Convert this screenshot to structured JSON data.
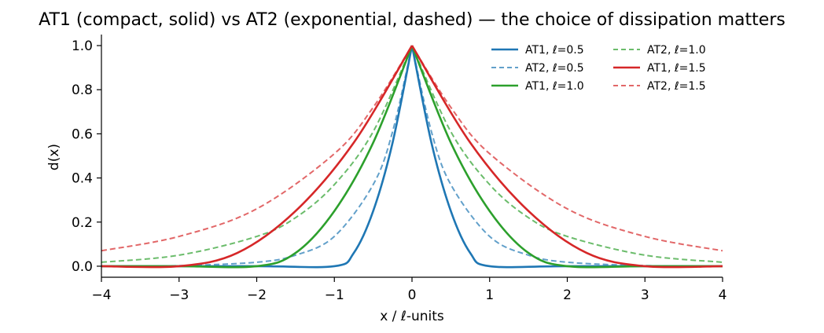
{
  "chart_data": {
    "type": "line",
    "title": "AT1 (compact, solid) vs AT2 (exponential, dashed) — the choice of dissipation matters",
    "xlabel": "x / ℓ-units",
    "ylabel": "d(x)",
    "xlim": [
      -4,
      4
    ],
    "ylim": [
      -0.05,
      1.05
    ],
    "xticks": [
      -4,
      -3,
      -2,
      -1,
      0,
      1,
      2,
      3,
      4
    ],
    "xtick_labels": [
      "−4",
      "−3",
      "−2",
      "−1",
      "0",
      "1",
      "2",
      "3",
      "4"
    ],
    "yticks": [
      0.0,
      0.2,
      0.4,
      0.6,
      0.8,
      1.0
    ],
    "ytick_labels": [
      "0.0",
      "0.2",
      "0.4",
      "0.6",
      "0.8",
      "1.0"
    ],
    "grid": false,
    "legend_position": "top-right",
    "legend_columns": 2,
    "series": [
      {
        "name": "AT1, ℓ=0.5",
        "color": "#1f77b4",
        "style": "solid",
        "x": [
          -4,
          -2,
          -1,
          -0.75,
          -0.5,
          -0.25,
          0,
          0.25,
          0.5,
          0.75,
          1,
          2,
          4
        ],
        "y": [
          0,
          0,
          0,
          0.06,
          0.25,
          0.56,
          1.0,
          0.56,
          0.25,
          0.06,
          0,
          0,
          0
        ]
      },
      {
        "name": "AT2, ℓ=0.5",
        "color": "#1f77b4",
        "style": "dashed",
        "x": [
          -4,
          -3,
          -2,
          -1.5,
          -1,
          -0.5,
          -0.25,
          0,
          0.25,
          0.5,
          1,
          1.5,
          2,
          3,
          4
        ],
        "y": [
          0.0003,
          0.0025,
          0.018,
          0.05,
          0.135,
          0.37,
          0.61,
          1.0,
          0.61,
          0.37,
          0.135,
          0.05,
          0.018,
          0.0025,
          0.0003
        ]
      },
      {
        "name": "AT1, ℓ=1.0",
        "color": "#2ca02c",
        "style": "solid",
        "x": [
          -4,
          -3,
          -2,
          -1.5,
          -1,
          -0.5,
          0,
          0.5,
          1,
          1.5,
          2,
          3,
          4
        ],
        "y": [
          0,
          0,
          0,
          0.06,
          0.25,
          0.56,
          1.0,
          0.56,
          0.25,
          0.06,
          0,
          0,
          0
        ]
      },
      {
        "name": "AT2, ℓ=1.0",
        "color": "#2ca02c",
        "style": "dashed",
        "x": [
          -4,
          -3,
          -2,
          -1.5,
          -1,
          -0.5,
          0,
          0.5,
          1,
          1.5,
          2,
          3,
          4
        ],
        "y": [
          0.018,
          0.05,
          0.135,
          0.22,
          0.37,
          0.61,
          1.0,
          0.61,
          0.37,
          0.22,
          0.135,
          0.05,
          0.018
        ]
      },
      {
        "name": "AT1, ℓ=1.5",
        "color": "#d62728",
        "style": "solid",
        "x": [
          -4,
          -3,
          -2.25,
          -1.5,
          -0.75,
          0,
          0.75,
          1.5,
          2.25,
          3,
          4
        ],
        "y": [
          0,
          0,
          0.06,
          0.25,
          0.56,
          1.0,
          0.56,
          0.25,
          0.06,
          0,
          0
        ]
      },
      {
        "name": "AT2, ℓ=1.5",
        "color": "#d62728",
        "style": "dashed",
        "x": [
          -4,
          -3,
          -2,
          -1,
          -0.5,
          0,
          0.5,
          1,
          2,
          3,
          4
        ],
        "y": [
          0.07,
          0.135,
          0.26,
          0.51,
          0.72,
          1.0,
          0.72,
          0.51,
          0.26,
          0.135,
          0.07
        ]
      }
    ]
  }
}
